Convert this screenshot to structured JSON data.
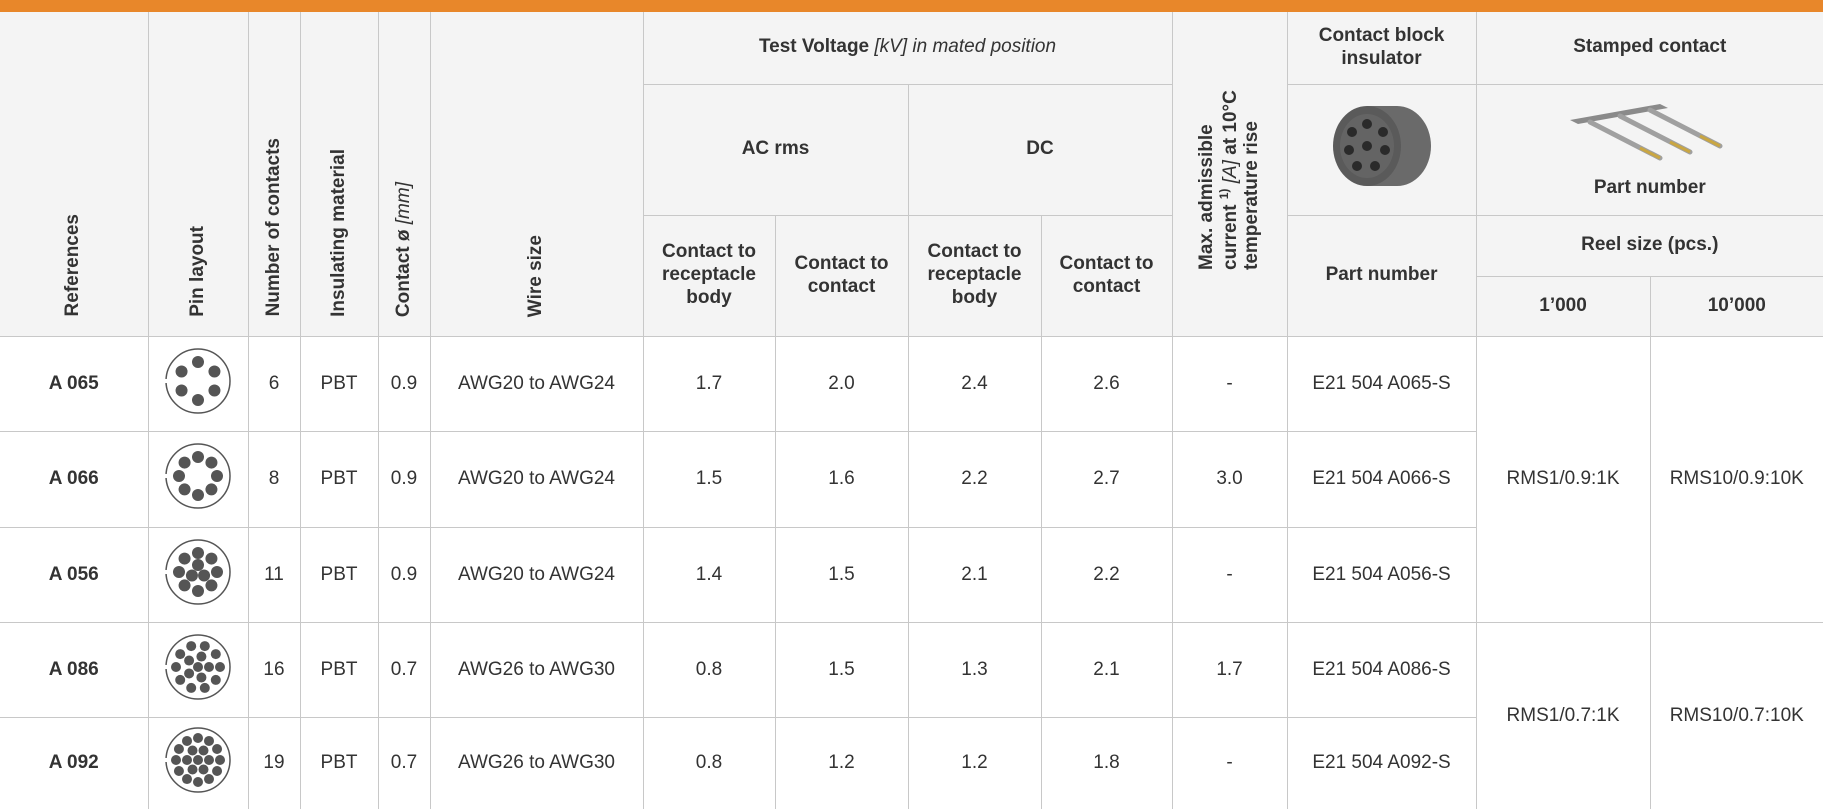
{
  "header": {
    "references": "References",
    "pin_layout": "Pin layout",
    "number_of_contacts": "Number of contacts",
    "insulating_material": "Insulating material",
    "contact_diameter": {
      "label": "Contact ø",
      "unit": "[mm]"
    },
    "wire_size": "Wire size",
    "test_voltage": {
      "label": "Test Voltage",
      "unit": "[kV] in mated position"
    },
    "ac_rms": "AC rms",
    "dc": "DC",
    "contact_to_receptacle_body": "Contact to receptacle body",
    "contact_to_contact": "Contact to contact",
    "max_current": {
      "label": "Max. admissible current",
      "note": "1)",
      "unit": "[A]",
      "rest": "at 10°C temperature rise"
    },
    "contact_block_insulator": "Contact block insulator",
    "block_part_number": "Part number",
    "stamped_contact": "Stamped contact",
    "stamped_part_number": "Part number",
    "reel_size": "Reel size (pcs.)",
    "reel_1000": "1’000",
    "reel_10000": "10’000"
  },
  "table": {
    "rows": [
      [
        "A 065",
        "6",
        "PBT",
        "0.9",
        "AWG20 to AWG24",
        "1.7",
        "2.0",
        "2.4",
        "2.6",
        "-",
        "E21 504 A065-S"
      ],
      [
        "A 066",
        "8",
        "PBT",
        "0.9",
        "AWG20 to AWG24",
        "1.5",
        "1.6",
        "2.2",
        "2.7",
        "3.0",
        "E21 504 A066-S"
      ],
      [
        "A 056",
        "11",
        "PBT",
        "0.9",
        "AWG20 to AWG24",
        "1.4",
        "1.5",
        "2.1",
        "2.2",
        "-",
        "E21 504 A056-S"
      ],
      [
        "A 086",
        "16",
        "PBT",
        "0.7",
        "AWG26 to AWG30",
        "0.8",
        "1.5",
        "1.3",
        "2.1",
        "1.7",
        "E21 504 A086-S"
      ],
      [
        "A 092",
        "19",
        "PBT",
        "0.7",
        "AWG26 to AWG30",
        "0.8",
        "1.2",
        "1.2",
        "1.8",
        "-",
        "E21 504 A092-S"
      ]
    ],
    "stamped": [
      {
        "reel_1000": "RMS1/0.9:1K",
        "reel_10000": "RMS10/0.9:10K"
      },
      {
        "reel_1000": "RMS1/0.7:1K",
        "reel_10000": "RMS10/0.7:10K"
      }
    ]
  }
}
